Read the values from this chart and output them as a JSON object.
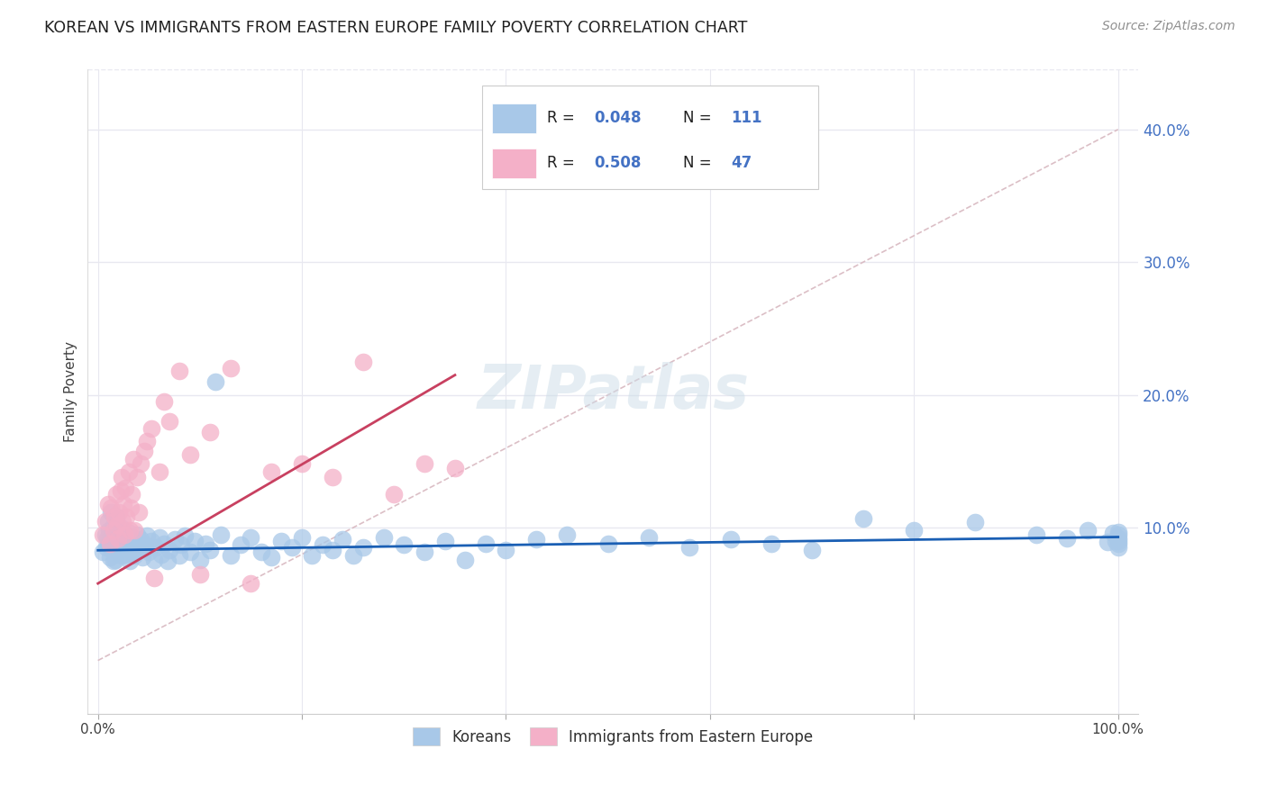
{
  "title": "KOREAN VS IMMIGRANTS FROM EASTERN EUROPE FAMILY POVERTY CORRELATION CHART",
  "source": "Source: ZipAtlas.com",
  "ylabel_label": "Family Poverty",
  "ytick_labels": [
    "10.0%",
    "20.0%",
    "30.0%",
    "40.0%"
  ],
  "ytick_values": [
    0.1,
    0.2,
    0.3,
    0.4
  ],
  "xlim": [
    -0.01,
    1.02
  ],
  "ylim": [
    -0.04,
    0.445
  ],
  "watermark": "ZIPatlas",
  "legend_label1": "Koreans",
  "legend_label2": "Immigrants from Eastern Europe",
  "korean_color": "#a8c8e8",
  "eastern_color": "#f4b0c8",
  "korean_line_color": "#1a5fb4",
  "eastern_line_color": "#c84060",
  "ref_line_color": "#d8b8c0",
  "background_color": "#ffffff",
  "grid_color": "#e8e8f0",
  "title_color": "#202020",
  "source_color": "#909090",
  "accent_color": "#4472c4",
  "korean_R": 0.048,
  "eastern_R": 0.508,
  "korean_N": 111,
  "eastern_N": 47,
  "korean_x": [
    0.005,
    0.007,
    0.008,
    0.009,
    0.01,
    0.01,
    0.011,
    0.012,
    0.012,
    0.013,
    0.013,
    0.014,
    0.015,
    0.015,
    0.016,
    0.016,
    0.017,
    0.017,
    0.018,
    0.018,
    0.019,
    0.02,
    0.02,
    0.021,
    0.022,
    0.022,
    0.023,
    0.024,
    0.025,
    0.026,
    0.027,
    0.028,
    0.029,
    0.03,
    0.031,
    0.032,
    0.033,
    0.034,
    0.035,
    0.036,
    0.037,
    0.038,
    0.04,
    0.042,
    0.044,
    0.046,
    0.048,
    0.05,
    0.052,
    0.055,
    0.057,
    0.06,
    0.062,
    0.065,
    0.068,
    0.07,
    0.075,
    0.08,
    0.082,
    0.085,
    0.09,
    0.095,
    0.1,
    0.105,
    0.11,
    0.115,
    0.12,
    0.13,
    0.14,
    0.15,
    0.16,
    0.17,
    0.18,
    0.19,
    0.2,
    0.21,
    0.22,
    0.23,
    0.24,
    0.25,
    0.26,
    0.28,
    0.3,
    0.32,
    0.34,
    0.36,
    0.38,
    0.4,
    0.43,
    0.46,
    0.5,
    0.54,
    0.58,
    0.62,
    0.66,
    0.7,
    0.75,
    0.8,
    0.86,
    0.92,
    0.95,
    0.97,
    0.99,
    0.995,
    0.998,
    1.0,
    1.0,
    1.0,
    1.0,
    1.0,
    1.0
  ],
  "korean_y": [
    0.082,
    0.095,
    0.085,
    0.092,
    0.105,
    0.088,
    0.098,
    0.091,
    0.078,
    0.086,
    0.112,
    0.093,
    0.087,
    0.075,
    0.097,
    0.103,
    0.089,
    0.076,
    0.094,
    0.108,
    0.082,
    0.096,
    0.083,
    0.091,
    0.086,
    0.1,
    0.079,
    0.088,
    0.094,
    0.085,
    0.092,
    0.08,
    0.097,
    0.088,
    0.075,
    0.09,
    0.085,
    0.093,
    0.082,
    0.079,
    0.088,
    0.095,
    0.083,
    0.091,
    0.078,
    0.087,
    0.094,
    0.082,
    0.09,
    0.076,
    0.085,
    0.093,
    0.08,
    0.088,
    0.075,
    0.083,
    0.091,
    0.079,
    0.087,
    0.094,
    0.082,
    0.09,
    0.076,
    0.088,
    0.083,
    0.21,
    0.095,
    0.079,
    0.087,
    0.093,
    0.082,
    0.078,
    0.09,
    0.085,
    0.093,
    0.079,
    0.087,
    0.083,
    0.091,
    0.079,
    0.085,
    0.093,
    0.087,
    0.082,
    0.09,
    0.076,
    0.088,
    0.083,
    0.091,
    0.095,
    0.088,
    0.093,
    0.085,
    0.091,
    0.088,
    0.083,
    0.107,
    0.098,
    0.104,
    0.095,
    0.092,
    0.098,
    0.089,
    0.096,
    0.09,
    0.095,
    0.088,
    0.092,
    0.097,
    0.09,
    0.085
  ],
  "eastern_x": [
    0.005,
    0.007,
    0.01,
    0.012,
    0.013,
    0.015,
    0.016,
    0.018,
    0.019,
    0.02,
    0.021,
    0.022,
    0.023,
    0.024,
    0.025,
    0.026,
    0.027,
    0.028,
    0.03,
    0.031,
    0.032,
    0.033,
    0.035,
    0.036,
    0.038,
    0.04,
    0.042,
    0.045,
    0.048,
    0.052,
    0.055,
    0.06,
    0.065,
    0.07,
    0.08,
    0.09,
    0.1,
    0.11,
    0.13,
    0.15,
    0.17,
    0.2,
    0.23,
    0.26,
    0.29,
    0.32,
    0.35
  ],
  "eastern_y": [
    0.095,
    0.105,
    0.118,
    0.088,
    0.115,
    0.098,
    0.108,
    0.125,
    0.102,
    0.092,
    0.112,
    0.128,
    0.138,
    0.105,
    0.118,
    0.095,
    0.13,
    0.108,
    0.142,
    0.098,
    0.115,
    0.125,
    0.152,
    0.098,
    0.138,
    0.112,
    0.148,
    0.158,
    0.165,
    0.175,
    0.062,
    0.142,
    0.195,
    0.18,
    0.218,
    0.155,
    0.065,
    0.172,
    0.22,
    0.058,
    0.142,
    0.148,
    0.138,
    0.225,
    0.125,
    0.148,
    0.145
  ],
  "korean_line_x": [
    0.0,
    1.0
  ],
  "korean_line_y": [
    0.083,
    0.093
  ],
  "eastern_line_x": [
    0.0,
    0.35
  ],
  "eastern_line_y": [
    0.058,
    0.215
  ],
  "ref_line_x": [
    0.0,
    1.0
  ],
  "ref_line_y": [
    0.0,
    0.4
  ]
}
